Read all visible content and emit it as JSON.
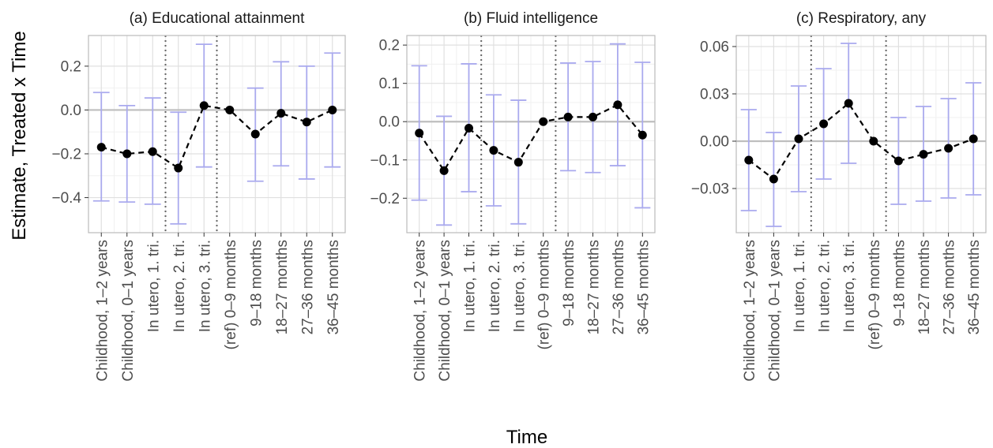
{
  "figure": {
    "xlabel": "Time",
    "ylabel": "Estimate, Treated x Time"
  },
  "chart_data": [
    {
      "type": "line",
      "title": "(a) Educational attainment",
      "categories": [
        "Childhood, 1–2 years",
        "Childhood, 0–1 years",
        "In utero, 1. tri.",
        "In utero, 2. tri.",
        "In utero, 3. tri.",
        "(ref) 0–9 months",
        "9–18 months",
        "18–27 months",
        "27–36 months",
        "36–45 months"
      ],
      "values": [
        -0.17,
        -0.2,
        -0.19,
        -0.265,
        0.02,
        0.0,
        -0.11,
        -0.015,
        -0.055,
        0.0
      ],
      "ci_low": [
        -0.415,
        -0.42,
        -0.43,
        -0.52,
        -0.26,
        0.0,
        -0.325,
        -0.255,
        -0.315,
        -0.26
      ],
      "ci_high": [
        0.08,
        0.02,
        0.055,
        -0.01,
        0.3,
        0.0,
        0.1,
        0.22,
        0.2,
        0.26
      ],
      "ylim": [
        -0.56,
        0.34
      ],
      "yticks": [
        -0.4,
        -0.2,
        0.0,
        0.2
      ],
      "ytick_labels": [
        "−0.4",
        "−0.2",
        "0.0",
        "0.2"
      ],
      "reference_lines": [
        2.5,
        4.5
      ],
      "grid": true
    },
    {
      "type": "line",
      "title": "(b) Fluid intelligence",
      "categories": [
        "Childhood, 1–2 years",
        "Childhood, 0–1 years",
        "In utero, 1. tri.",
        "In utero, 2. tri.",
        "In utero, 3. tri.",
        "(ref) 0–9 months",
        "9–18 months",
        "18–27 months",
        "27–36 months",
        "36–45 months"
      ],
      "values": [
        -0.03,
        -0.128,
        -0.017,
        -0.075,
        -0.106,
        0.0,
        0.012,
        0.012,
        0.044,
        -0.035
      ],
      "ci_low": [
        -0.205,
        -0.27,
        -0.183,
        -0.22,
        -0.267,
        0.0,
        -0.128,
        -0.133,
        -0.115,
        -0.225
      ],
      "ci_high": [
        0.146,
        0.014,
        0.151,
        0.07,
        0.056,
        0.0,
        0.153,
        0.157,
        0.203,
        0.155
      ],
      "ylim": [
        -0.29,
        0.225
      ],
      "yticks": [
        -0.2,
        -0.1,
        0.0,
        0.1,
        0.2
      ],
      "ytick_labels": [
        "−0.2",
        "−0.1",
        "0.0",
        "0.1",
        "0.2"
      ],
      "reference_lines": [
        2.5,
        5.5
      ],
      "grid": true
    },
    {
      "type": "line",
      "title": "(c) Respiratory, any",
      "categories": [
        "Childhood, 1–2 years",
        "Childhood, 0–1 years",
        "In utero, 1. tri.",
        "In utero, 2. tri.",
        "In utero, 3. tri.",
        "(ref) 0–9 months",
        "9–18 months",
        "18–27 months",
        "27–36 months",
        "36–45 months"
      ],
      "values": [
        -0.012,
        -0.024,
        0.0015,
        0.011,
        0.024,
        0.0,
        -0.0125,
        -0.0083,
        -0.0045,
        0.0015
      ],
      "ci_low": [
        -0.044,
        -0.054,
        -0.032,
        -0.024,
        -0.014,
        0.0,
        -0.04,
        -0.038,
        -0.036,
        -0.034
      ],
      "ci_high": [
        0.02,
        0.0055,
        0.035,
        0.046,
        0.062,
        0.0,
        0.015,
        0.022,
        0.027,
        0.037
      ],
      "ylim": [
        -0.058,
        0.067
      ],
      "yticks": [
        -0.03,
        0.0,
        0.03,
        0.06
      ],
      "ytick_labels": [
        "−0.03",
        "0.00",
        "0.03",
        "0.06"
      ],
      "reference_lines": [
        2.5,
        5.5
      ],
      "grid": true
    }
  ],
  "colors": {
    "ci": "#aaaaee",
    "line": "#000000",
    "point": "#000000",
    "zero_line": "#bebebe",
    "grid_major": "#e0e0e0",
    "grid_minor": "#f0f0f0",
    "panel_border": "#bbbbbb",
    "reference_line": "#666666"
  }
}
